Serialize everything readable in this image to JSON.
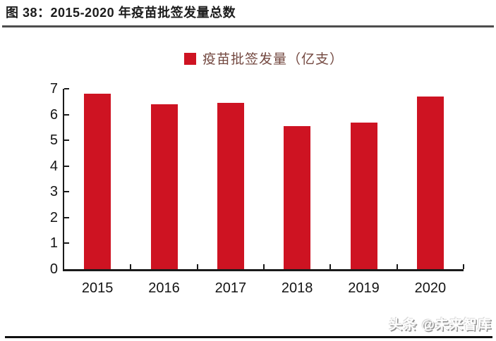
{
  "page": {
    "title": "图 38：2015-2020 年疫苗批签发量总数",
    "watermark": "头条 @未来智库"
  },
  "legend": {
    "label": "疫苗批签发量（亿支）"
  },
  "colors": {
    "bar": "#CE1322",
    "legend_text": "#734840",
    "axis": "#1a1a1a",
    "title_rule": "#4d4d4d",
    "bottom_rule": "#101010"
  },
  "chart_data": {
    "type": "bar",
    "title": "2015-2020 年疫苗批签发量总数",
    "series_name": "疫苗批签发量（亿支）",
    "categories": [
      "2015",
      "2016",
      "2017",
      "2018",
      "2019",
      "2020"
    ],
    "values": [
      6.8,
      6.4,
      6.45,
      5.55,
      5.7,
      6.7
    ],
    "xlabel": "",
    "ylabel": "",
    "ylim": [
      0,
      7
    ],
    "yticks": [
      0,
      1,
      2,
      3,
      4,
      5,
      6,
      7
    ],
    "grid": false,
    "legend_position": "top-center"
  }
}
